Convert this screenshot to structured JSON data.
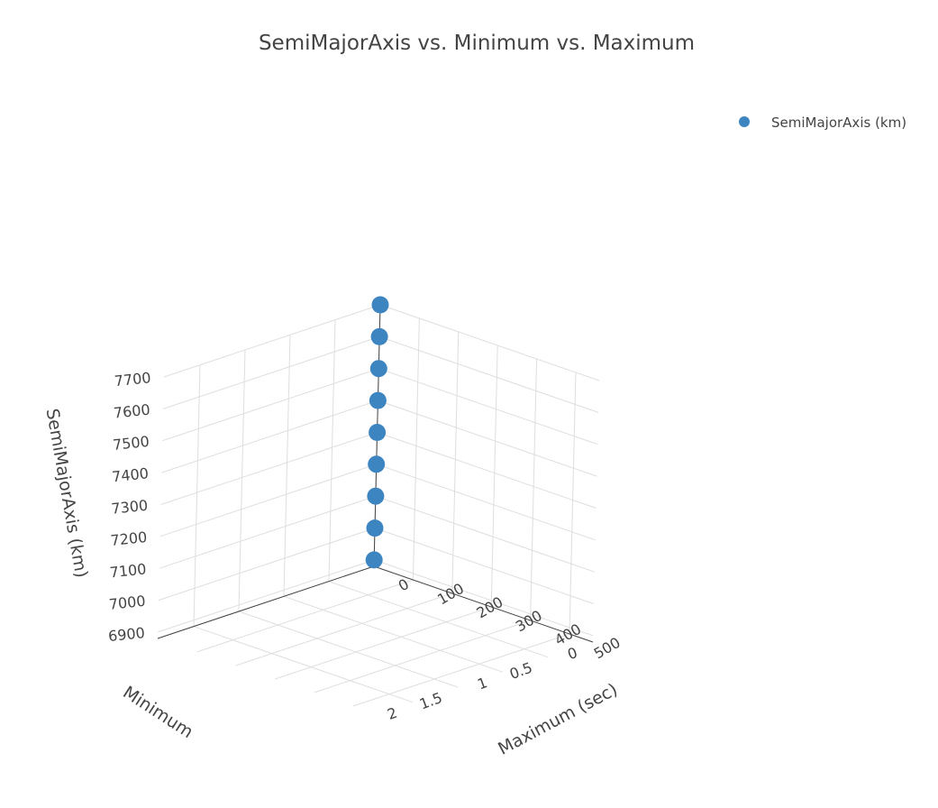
{
  "chart_data": {
    "type": "scatter",
    "title": "SemiMajorAxis vs. Minimum vs. Maximum",
    "x_axis": {
      "label": "Minimum",
      "range": [
        0,
        2.4
      ],
      "ticks": [
        "0",
        "0.5",
        "1",
        "1.5",
        "2"
      ]
    },
    "y_axis": {
      "label": "Maximum (sec)",
      "range": [
        0,
        560
      ],
      "ticks": [
        "0",
        "100",
        "200",
        "300",
        "400",
        "500"
      ]
    },
    "z_axis": {
      "label": "SemiMajorAxis (km)",
      "range": [
        6880,
        7700
      ],
      "ticks": [
        "6900",
        "7000",
        "7100",
        "7200",
        "7300",
        "7400",
        "7500",
        "7600",
        "7700"
      ]
    },
    "series": [
      {
        "name": "SemiMajorAxis (km)",
        "color": "#3d85c0",
        "points": [
          {
            "x": 0.0,
            "y": 0,
            "z": 6900
          },
          {
            "x": 0.0,
            "y": 0,
            "z": 7000
          },
          {
            "x": 0.0,
            "y": 0,
            "z": 7100
          },
          {
            "x": 0.0,
            "y": 0,
            "z": 7200
          },
          {
            "x": 0.0,
            "y": 0,
            "z": 7300
          },
          {
            "x": 0.0,
            "y": 0,
            "z": 7400
          },
          {
            "x": 0.0,
            "y": 0,
            "z": 7500
          },
          {
            "x": 0.0,
            "y": 0,
            "z": 7600
          },
          {
            "x": 0.0,
            "y": 0,
            "z": 7700
          }
        ]
      }
    ],
    "legend": "top-right",
    "grid": true
  }
}
